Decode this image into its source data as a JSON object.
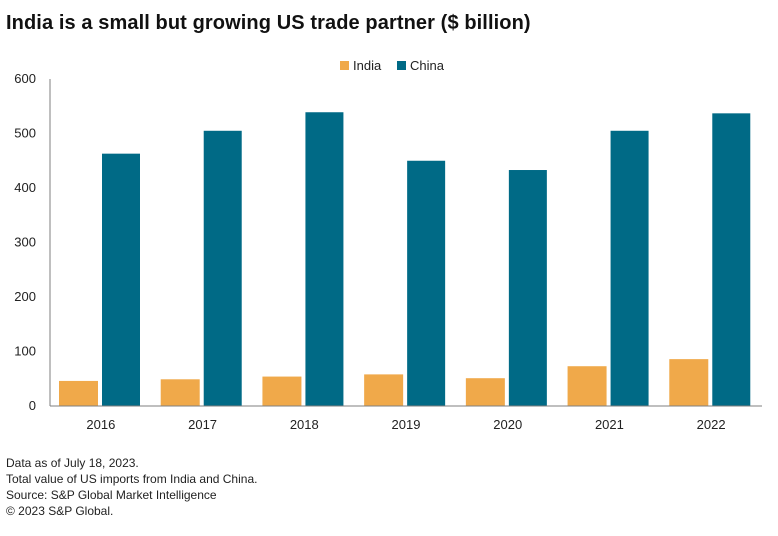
{
  "title": "India is a small but growing US trade partner ($ billion)",
  "chart_data": {
    "type": "bar",
    "title": "India is a small but growing US trade partner ($ billion)",
    "categories": [
      "2016",
      "2017",
      "2018",
      "2019",
      "2020",
      "2021",
      "2022"
    ],
    "series": [
      {
        "name": "India",
        "color": "#f0a94a",
        "values": [
          46,
          49,
          54,
          58,
          51,
          73,
          86
        ]
      },
      {
        "name": "China",
        "color": "#006a86",
        "values": [
          463,
          505,
          539,
          450,
          433,
          505,
          537
        ]
      }
    ],
    "yticks": [
      "0",
      "100",
      "200",
      "300",
      "400",
      "500",
      "600"
    ],
    "ylim": [
      0,
      600
    ],
    "xlabel": "",
    "ylabel": "",
    "legend": "top-center",
    "grid": false
  },
  "notes": [
    "Data as of July 18, 2023.",
    "Total value of US imports from India and China.",
    "Source: S&P Global Market Intelligence",
    "© 2023 S&P Global."
  ]
}
